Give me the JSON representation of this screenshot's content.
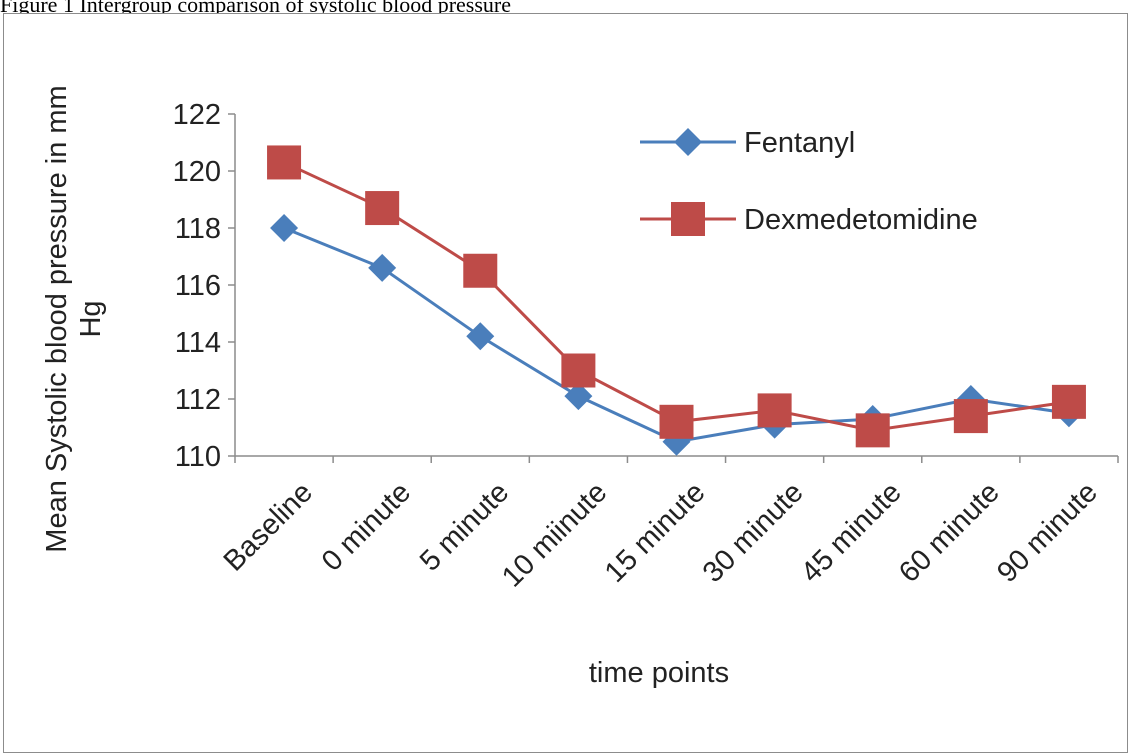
{
  "caption": "Figure 1 Intergroup comparison of systolic blood pressure",
  "chart_data": {
    "type": "line",
    "title": "",
    "xlabel": "time points",
    "ylabel": "Mean Systolic blood pressure in mm Hg",
    "ylim": [
      110,
      122
    ],
    "y_ticks": [
      110,
      112,
      114,
      116,
      118,
      120,
      122
    ],
    "grid": false,
    "legend_position": "top-right",
    "categories": [
      "Baseline",
      "0 minute",
      "5 minute",
      "10 miinute",
      "15 minute",
      "30 minute",
      "45 minute",
      "60 minute",
      "90 minute"
    ],
    "series": [
      {
        "name": "Fentanyl",
        "color": "#4a7ebb",
        "marker": "diamond",
        "values": [
          118.0,
          116.6,
          114.2,
          112.1,
          110.5,
          111.1,
          111.3,
          112.0,
          111.5
        ]
      },
      {
        "name": "Dexmedetomidine",
        "color": "#be4b48",
        "marker": "square",
        "values": [
          120.3,
          118.7,
          116.5,
          113.0,
          111.2,
          111.6,
          110.9,
          111.4,
          111.9
        ]
      }
    ]
  }
}
